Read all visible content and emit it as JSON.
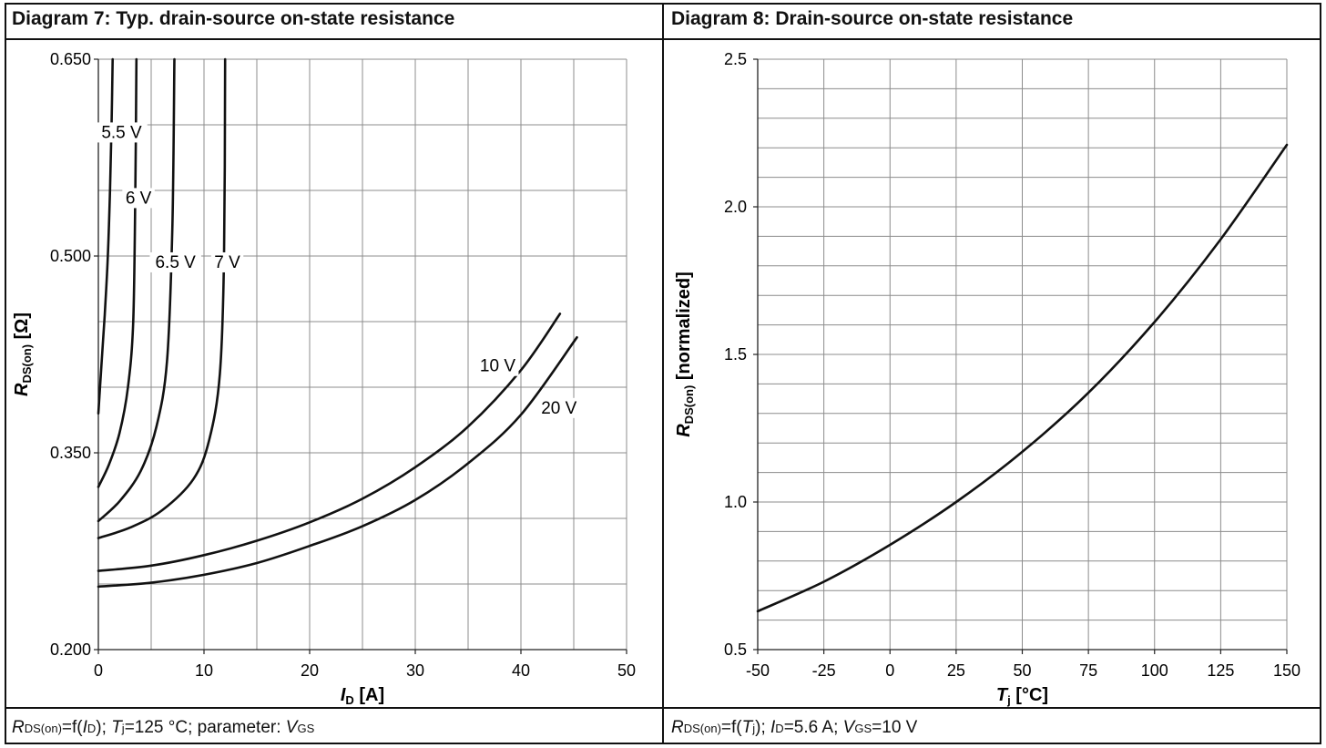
{
  "titles": {
    "left": "Diagram 7: Typ. drain-source on-state resistance",
    "right": "Diagram 8: Drain-source on-state resistance"
  },
  "captions": {
    "left": {
      "sym": "R",
      "sub1": "DS(on)",
      "t1": "=f(",
      "i1": "I",
      "sub2": "D",
      "t2": "); ",
      "i2": "T",
      "sub3": "j",
      "t3": "=125 °C; parameter: ",
      "i3": "V",
      "sub4": "GS"
    },
    "right": {
      "sym": "R",
      "sub1": "DS(on)",
      "t1": "=f(",
      "i1": "T",
      "sub2": "j",
      "t2": "); ",
      "i2": "I",
      "sub3": "D",
      "t3": "=5.6 A; ",
      "i3": "V",
      "sub4": "GS",
      "t4": "=10 V"
    }
  },
  "chart_data": [
    {
      "type": "line",
      "title": "Diagram 7: Typ. drain-source on-state resistance",
      "xlabel": {
        "main": "I",
        "sub": "D",
        "unit": " [A]"
      },
      "ylabel": {
        "main": "R",
        "sub": "DS(on)",
        "unit": " [Ω]"
      },
      "xlim": [
        0,
        50
      ],
      "ylim": [
        0.2,
        0.65
      ],
      "xticks": [
        0,
        10,
        20,
        30,
        40,
        50
      ],
      "yticks": [
        0.2,
        0.35,
        0.5,
        0.65
      ],
      "ytick_labels": [
        "0.200",
        "0.350",
        "0.500",
        "0.650"
      ],
      "grid": true,
      "series": [
        {
          "name": "5.5 V",
          "x": [
            0,
            0.3,
            0.6,
            0.9,
            1.1,
            1.25,
            1.35
          ],
          "y": [
            0.38,
            0.418,
            0.455,
            0.5,
            0.55,
            0.6,
            0.65
          ]
        },
        {
          "name": "6 V",
          "x": [
            0,
            1,
            2,
            2.8,
            3.3,
            3.5,
            3.6
          ],
          "y": [
            0.324,
            0.341,
            0.365,
            0.4,
            0.45,
            0.55,
            0.65
          ]
        },
        {
          "name": "6.5 V",
          "x": [
            0,
            2,
            4,
            5.5,
            6.5,
            7,
            7.2
          ],
          "y": [
            0.298,
            0.313,
            0.336,
            0.37,
            0.42,
            0.52,
            0.65
          ]
        },
        {
          "name": "7 V",
          "x": [
            0,
            3,
            6,
            9,
            10.5,
            11.5,
            11.9,
            12
          ],
          "y": [
            0.285,
            0.293,
            0.306,
            0.33,
            0.36,
            0.41,
            0.5,
            0.65
          ]
        },
        {
          "name": "10 V",
          "x": [
            0,
            5,
            10,
            15,
            20,
            25,
            30,
            35,
            40,
            43.7
          ],
          "y": [
            0.26,
            0.264,
            0.272,
            0.283,
            0.297,
            0.315,
            0.339,
            0.37,
            0.413,
            0.456
          ]
        },
        {
          "name": "20 V",
          "x": [
            0,
            5,
            10,
            15,
            20,
            25,
            30,
            35,
            40,
            45.3
          ],
          "y": [
            0.248,
            0.251,
            0.257,
            0.266,
            0.279,
            0.294,
            0.314,
            0.342,
            0.379,
            0.438
          ]
        }
      ],
      "annotations": [
        {
          "text": "5.5 V",
          "x": 2.2,
          "y": 0.59
        },
        {
          "text": "6 V",
          "x": 3.8,
          "y": 0.54
        },
        {
          "text": "6.5 V",
          "x": 7.3,
          "y": 0.491
        },
        {
          "text": "7 V",
          "x": 12.2,
          "y": 0.491
        },
        {
          "text": "10 V",
          "x": 37.8,
          "y": 0.412
        },
        {
          "text": "20 V",
          "x": 43.6,
          "y": 0.38
        }
      ]
    },
    {
      "type": "line",
      "title": "Diagram 8: Drain-source on-state resistance",
      "xlabel": {
        "main": "T",
        "sub": "j",
        "unit": " [°C]"
      },
      "ylabel": {
        "main": "R",
        "sub": "DS(on)",
        "unit": " [normalized]"
      },
      "xlim": [
        -50,
        150
      ],
      "ylim": [
        0.5,
        2.5
      ],
      "xticks": [
        -50,
        -25,
        0,
        25,
        50,
        75,
        100,
        125,
        150
      ],
      "yticks": [
        0.5,
        1.0,
        1.5,
        2.0,
        2.5
      ],
      "ytick_labels": [
        "0.5",
        "1.0",
        "1.5",
        "2.0",
        "2.5"
      ],
      "grid": true,
      "series": [
        {
          "name": "",
          "x": [
            -50,
            -25,
            0,
            25,
            50,
            75,
            100,
            125,
            150
          ],
          "y": [
            0.63,
            0.73,
            0.855,
            1.0,
            1.17,
            1.37,
            1.61,
            1.89,
            2.21
          ]
        }
      ]
    }
  ]
}
